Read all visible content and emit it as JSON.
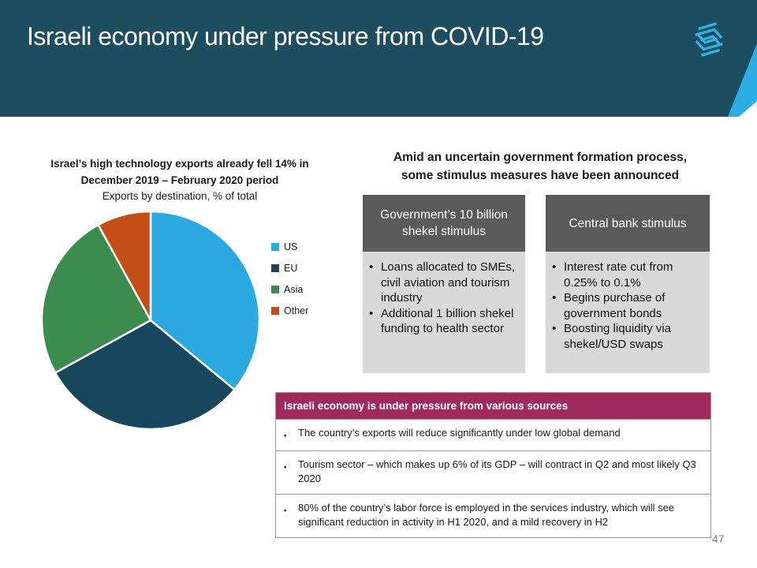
{
  "slide": {
    "title": "Israeli economy under pressure from COVID-19",
    "page_number": "47"
  },
  "glyphs": {
    "bullet": "•",
    "square_bullet": "▪"
  },
  "colors": {
    "header_bg": "#1D4E60",
    "accent_blue": "#2BAEE4",
    "box_header_bg": "#5A5A5A",
    "box_body_bg": "#D9D9D9",
    "table_header_bg": "#A02A5A",
    "table_border": "#C9879B"
  },
  "chart_data": {
    "type": "pie",
    "title": "Israel’s high technology exports already fell 14% in December 2019 – February 2020 period",
    "title_line1": "Israel’s high technology exports already fell 14% in",
    "title_line2": "December 2019 – February 2020 period",
    "subtitle": "Exports by destination, % of total",
    "categories": [
      "US",
      "EU",
      "Asia",
      "Other"
    ],
    "values": [
      36,
      31,
      25,
      8
    ],
    "colors": [
      "#2BAAE2",
      "#17475D",
      "#3C8B4F",
      "#C44E18"
    ],
    "legend_position": "right",
    "start_angle_deg": 0,
    "direction": "clockwise"
  },
  "stimulus": {
    "heading_line1": "Amid an uncertain government formation process,",
    "heading_line2": "some stimulus measures have been announced",
    "boxes": [
      {
        "title": "Government’s 10 billion shekel stimulus",
        "bullets": [
          "Loans allocated to SMEs, civil aviation and tourism industry",
          "Additional 1 billion shekel funding to health sector"
        ]
      },
      {
        "title": "Central bank stimulus",
        "bullets": [
          "Interest rate cut from 0.25% to 0.1%",
          "Begins purchase of government bonds",
          "Boosting liquidity via shekel/USD swaps"
        ]
      }
    ]
  },
  "pressure_table": {
    "header": "Israeli economy is under pressure from various sources",
    "rows": [
      "The country’s exports will reduce significantly under low global demand",
      "Tourism sector – which makes up 6% of its GDP – will contract in Q2 and most likely Q3 2020",
      "80% of the country’s labor force is employed in the services industry, which will see significant reduction in activity in H1 2020, and a mild recovery in H2"
    ]
  }
}
